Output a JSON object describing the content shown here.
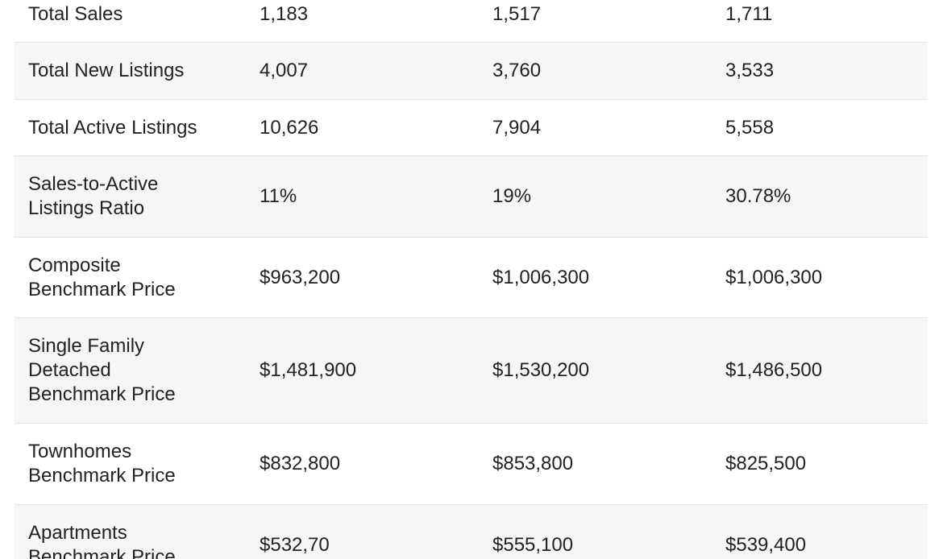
{
  "table": {
    "rows": [
      {
        "label_lines": [
          "Total Sales"
        ],
        "values": [
          "1,183",
          "1,517",
          "1,711"
        ]
      },
      {
        "label_lines": [
          "Total New Listings"
        ],
        "values": [
          "4,007",
          "3,760",
          "3,533"
        ]
      },
      {
        "label_lines": [
          "Total Active Listings"
        ],
        "values": [
          "10,626",
          "7,904",
          "5,558"
        ]
      },
      {
        "label_lines": [
          "Sales-to-Active",
          "Listings Ratio"
        ],
        "values": [
          "11%",
          "19%",
          "30.78%"
        ]
      },
      {
        "label_lines": [
          "Composite",
          "Benchmark Price"
        ],
        "values": [
          "$963,200",
          "$1,006,300",
          "$1,006,300"
        ]
      },
      {
        "label_lines": [
          "Single Family",
          "Detached",
          "Benchmark Price"
        ],
        "values": [
          "$1,481,900",
          "$1,530,200",
          "$1,486,500"
        ]
      },
      {
        "label_lines": [
          "Townhomes",
          "Benchmark Price"
        ],
        "values": [
          "$832,800",
          "$853,800",
          "$825,500"
        ]
      },
      {
        "label_lines": [
          "Apartments",
          "Benchmark Price"
        ],
        "values": [
          "$532,70",
          "$555,100",
          "$539,400"
        ]
      }
    ]
  }
}
